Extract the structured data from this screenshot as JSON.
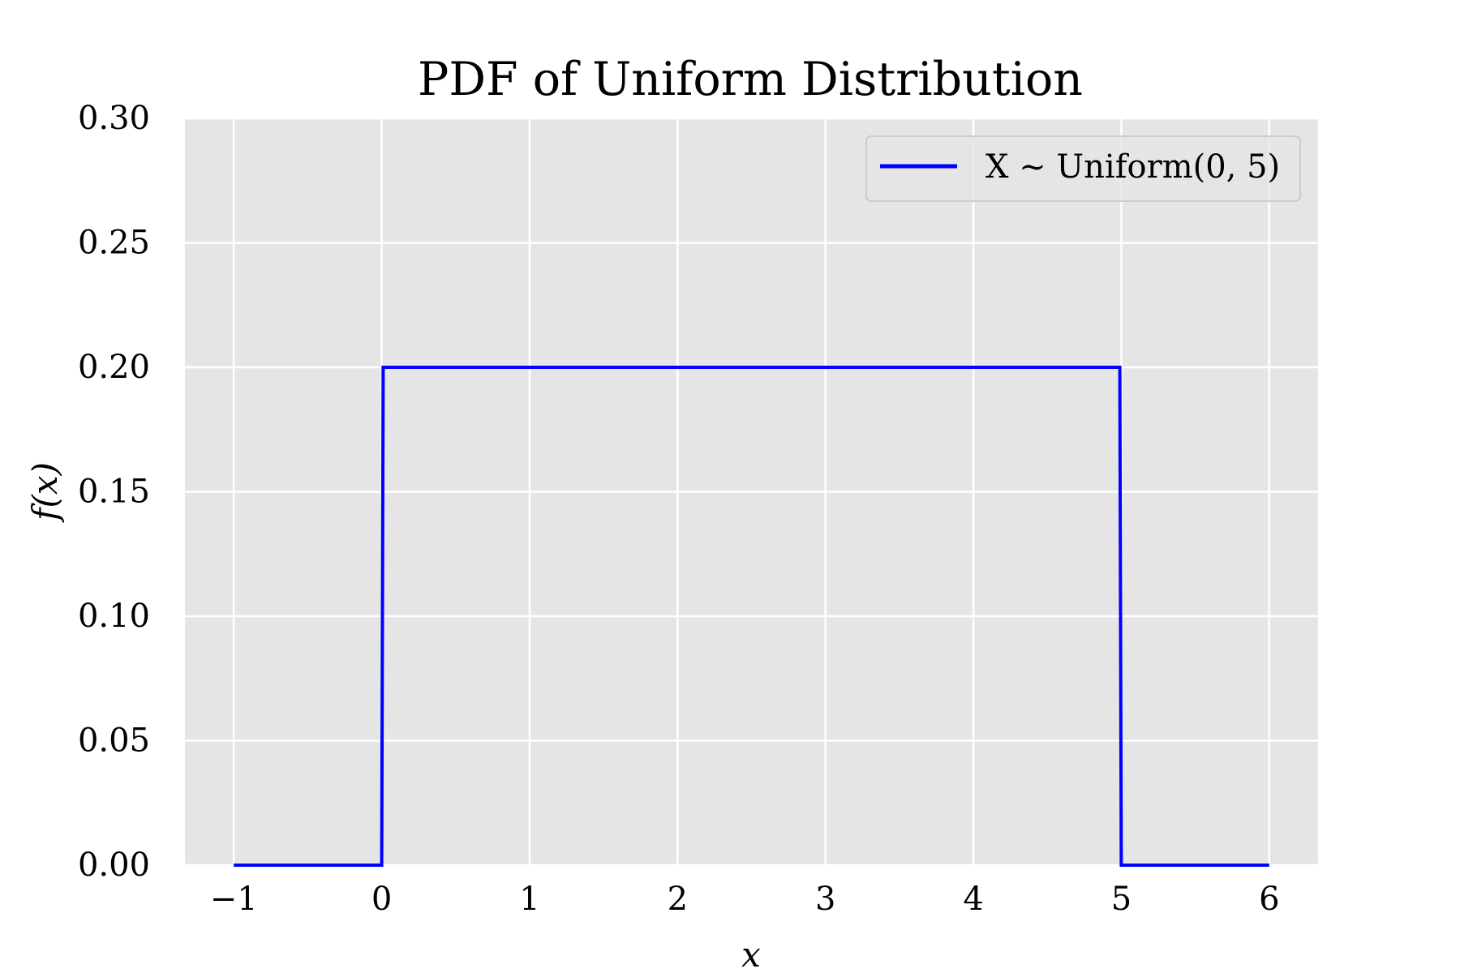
{
  "chart_data": {
    "type": "line",
    "title": "PDF of Uniform Distribution",
    "xlabel": "x",
    "ylabel": "f(x)",
    "xlim": [
      -1.33,
      6.33
    ],
    "ylim": [
      0,
      0.3
    ],
    "x_ticks": [
      -1,
      0,
      1,
      2,
      3,
      4,
      5,
      6
    ],
    "x_tick_labels": [
      "−1",
      "0",
      "1",
      "2",
      "3",
      "4",
      "5",
      "6"
    ],
    "y_ticks": [
      0,
      0.05,
      0.1,
      0.15,
      0.2,
      0.25,
      0.3
    ],
    "y_tick_labels": [
      "0.00",
      "0.05",
      "0.10",
      "0.15",
      "0.20",
      "0.25",
      "0.30"
    ],
    "grid": true,
    "legend_position": "top-right",
    "background": "#e5e5e5",
    "series": [
      {
        "name": "X ∼ Uniform(0, 5)",
        "color": "#0000ff",
        "x": [
          -1,
          0,
          0.01,
          4.99,
          5,
          6
        ],
        "y": [
          0,
          0,
          0.2,
          0.2,
          0,
          0
        ]
      }
    ]
  }
}
